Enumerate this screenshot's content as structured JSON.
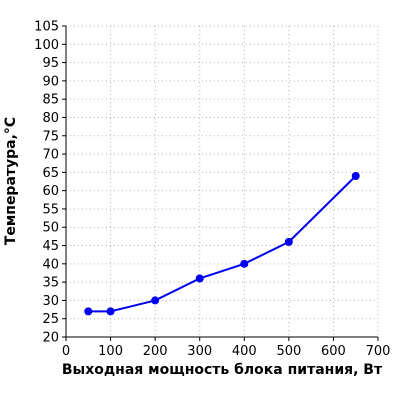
{
  "chart_data": {
    "type": "line",
    "x": [
      50,
      100,
      200,
      300,
      400,
      500,
      650
    ],
    "series": [
      {
        "values": [
          27,
          27,
          30,
          36,
          40,
          46,
          64
        ],
        "color": "#0000ee"
      }
    ],
    "xlabel": "Выходная мощность блока питания, Вт",
    "ylabel": "Температура,°C",
    "xlim": [
      0,
      700
    ],
    "ylim": [
      20,
      105
    ],
    "xticks": [
      0,
      100,
      200,
      300,
      400,
      500,
      600,
      700
    ],
    "yticks": [
      20,
      25,
      30,
      35,
      40,
      45,
      50,
      55,
      60,
      65,
      70,
      75,
      80,
      85,
      90,
      95,
      100,
      105
    ],
    "grid": true,
    "legend": "none"
  }
}
